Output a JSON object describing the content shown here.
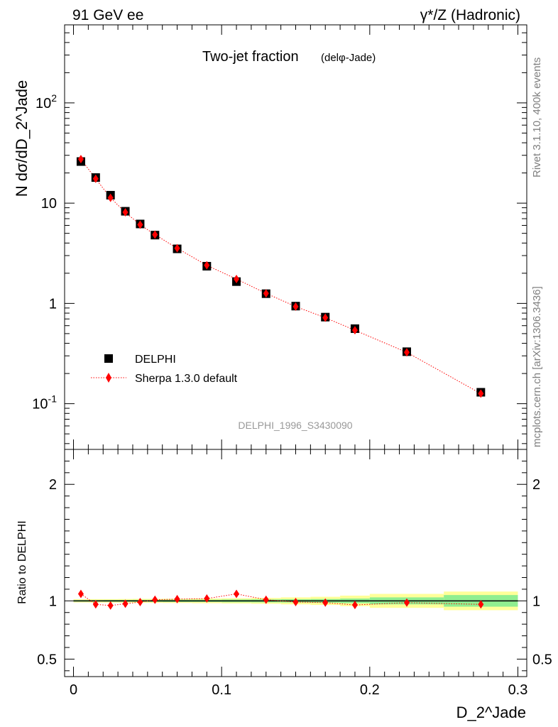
{
  "header": {
    "left": "91 GeV ee",
    "right": "γ*/Z (Hadronic)"
  },
  "side_labels": {
    "rivet": "Rivet 3.1.10,  400k events",
    "source": "mcplots.cern.ch [arXiv:1306.3436]"
  },
  "chart_data": [
    {
      "type": "scatter",
      "title": "Two-jet fraction",
      "subtitle": "(delφ-Jade)",
      "watermark": "DELPHI_1996_S3430090",
      "ylabel": "N dσ/dD_2^Jade",
      "yscale": "log",
      "ylim": [
        0.035,
        600
      ],
      "xlim": [
        -0.006,
        0.306
      ],
      "y_ticks": [
        {
          "value": 0.1,
          "label": "10^-1"
        },
        {
          "value": 1,
          "label": "1"
        },
        {
          "value": 10,
          "label": "10"
        },
        {
          "value": 100,
          "label": "10^2"
        }
      ],
      "legend_position": "bottom-left",
      "series": [
        {
          "name": "DELPHI",
          "color": "#000000",
          "marker": "square",
          "x": [
            0.005,
            0.015,
            0.025,
            0.035,
            0.045,
            0.055,
            0.07,
            0.09,
            0.11,
            0.13,
            0.15,
            0.17,
            0.19,
            0.225,
            0.275
          ],
          "y": [
            26.0,
            18.0,
            12.0,
            8.3,
            6.2,
            4.8,
            3.5,
            2.35,
            1.65,
            1.25,
            0.94,
            0.73,
            0.56,
            0.33,
            0.13
          ]
        },
        {
          "name": "Sherpa 1.3.0 default",
          "color": "#ff0000",
          "marker": "diamond",
          "line": "dotted",
          "x": [
            0.005,
            0.015,
            0.025,
            0.035,
            0.045,
            0.055,
            0.07,
            0.09,
            0.11,
            0.13,
            0.15,
            0.17,
            0.19,
            0.225,
            0.275
          ],
          "y": [
            27.5,
            17.5,
            11.3,
            8.1,
            6.1,
            4.85,
            3.55,
            2.4,
            1.75,
            1.26,
            0.93,
            0.72,
            0.54,
            0.325,
            0.126
          ]
        }
      ]
    },
    {
      "type": "scatter",
      "ylabel": "Ratio to DELPHI",
      "xlabel": "D_2^Jade",
      "xlim": [
        -0.006,
        0.306
      ],
      "ylim": [
        0.35,
        2.3
      ],
      "x_ticks": [
        0,
        0.1,
        0.2,
        0.3
      ],
      "x_tick_labels": [
        "0",
        "0.1",
        "0.2",
        "0.3"
      ],
      "y_ticks": [
        0.5,
        1,
        2
      ],
      "y_tick_labels": [
        "0.5",
        "1",
        "2"
      ],
      "bands": {
        "x_edges": [
          0,
          0.01,
          0.02,
          0.03,
          0.04,
          0.05,
          0.06,
          0.08,
          0.1,
          0.12,
          0.14,
          0.16,
          0.18,
          0.2,
          0.25,
          0.3
        ],
        "stat_half_width": [
          0.007,
          0.007,
          0.008,
          0.008,
          0.009,
          0.009,
          0.01,
          0.01,
          0.012,
          0.013,
          0.014,
          0.016,
          0.02,
          0.03,
          0.05
        ],
        "total_half_width": [
          0.014,
          0.015,
          0.015,
          0.016,
          0.017,
          0.017,
          0.018,
          0.02,
          0.022,
          0.025,
          0.03,
          0.035,
          0.045,
          0.06,
          0.08
        ],
        "stat_color": "#90ee90",
        "total_color": "#ffff99"
      },
      "series": [
        {
          "name": "Sherpa 1.3.0 default",
          "color": "#ff0000",
          "marker": "diamond",
          "line": "dotted",
          "x": [
            0.005,
            0.015,
            0.025,
            0.035,
            0.045,
            0.055,
            0.07,
            0.09,
            0.11,
            0.13,
            0.15,
            0.17,
            0.19,
            0.225,
            0.275
          ],
          "y": [
            1.06,
            0.97,
            0.96,
            0.975,
            0.99,
            1.01,
            1.015,
            1.02,
            1.06,
            1.01,
            0.99,
            0.985,
            0.965,
            0.985,
            0.97
          ]
        }
      ]
    }
  ]
}
